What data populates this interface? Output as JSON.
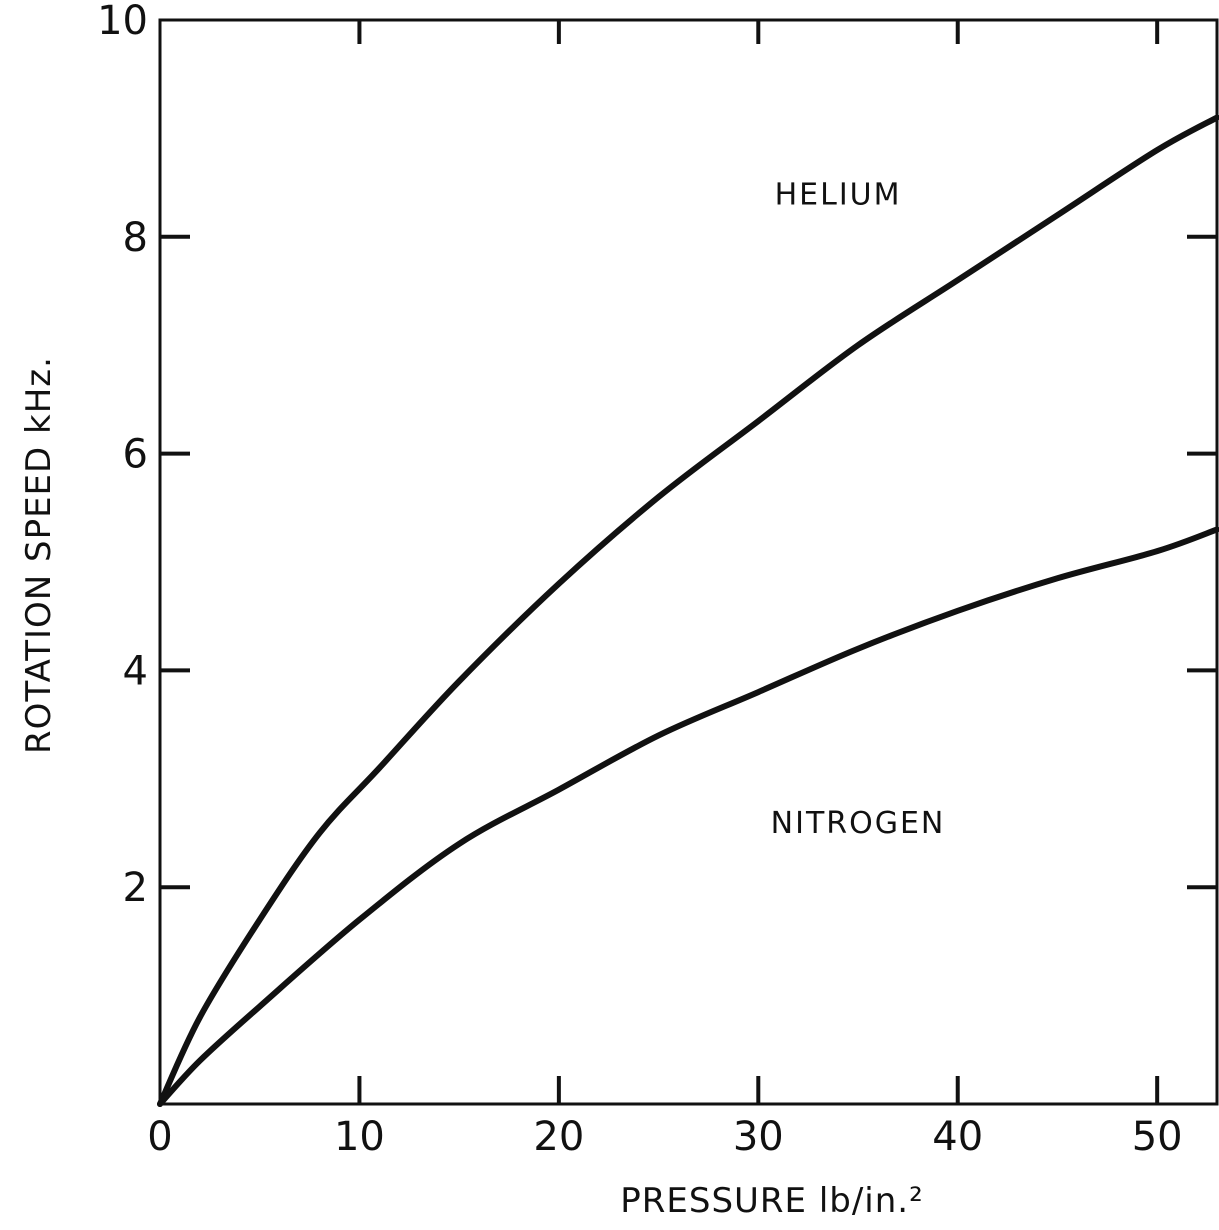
{
  "chart_data": {
    "type": "line",
    "title": "",
    "xlabel": "PRESSURE lb/in.²",
    "ylabel": "ROTATION SPEED kHz.",
    "xlim": [
      0,
      53
    ],
    "ylim": [
      0,
      10
    ],
    "x_ticks": [
      "0",
      "10",
      "20",
      "30",
      "40",
      "50"
    ],
    "y_ticks": [
      "2",
      "4",
      "6",
      "8",
      "10"
    ],
    "grid": false,
    "legend": "none",
    "series": [
      {
        "name": "HELIUM",
        "x": [
          0,
          2,
          5,
          8,
          11,
          15,
          20,
          25,
          30,
          35,
          40,
          45,
          50,
          53
        ],
        "y": [
          0,
          0.8,
          1.7,
          2.5,
          3.1,
          3.9,
          4.8,
          5.6,
          6.3,
          7.0,
          7.6,
          8.2,
          8.8,
          9.1
        ]
      },
      {
        "name": "NITROGEN",
        "x": [
          0,
          2,
          5,
          10,
          15,
          20,
          25,
          30,
          35,
          40,
          45,
          50,
          53
        ],
        "y": [
          0,
          0.4,
          0.9,
          1.7,
          2.4,
          2.9,
          3.4,
          3.8,
          4.2,
          4.55,
          4.85,
          5.1,
          5.3
        ]
      }
    ]
  }
}
